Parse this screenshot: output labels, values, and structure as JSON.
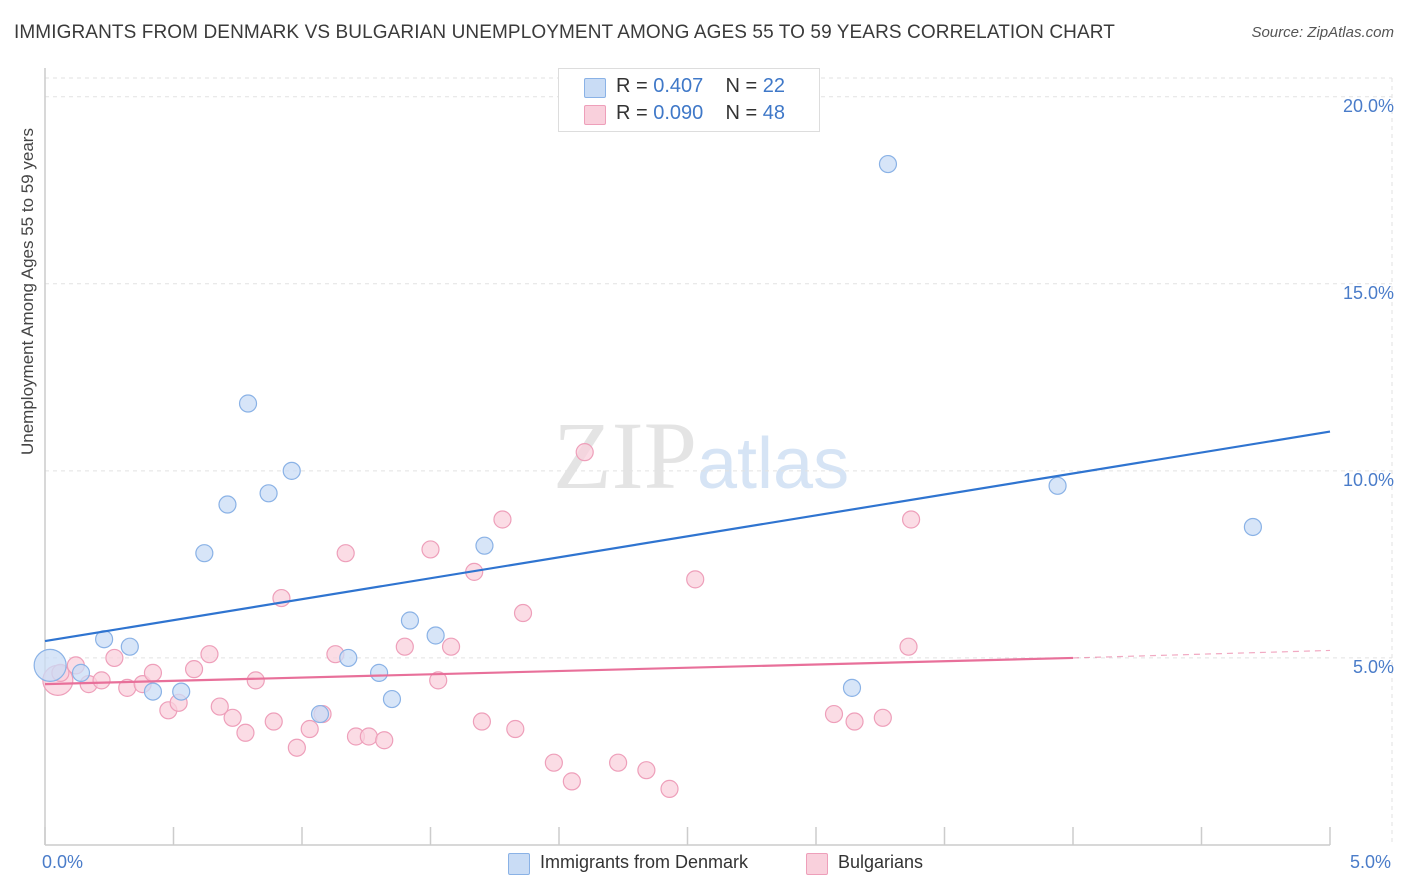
{
  "title": "IMMIGRANTS FROM DENMARK VS BULGARIAN UNEMPLOYMENT AMONG AGES 55 TO 59 YEARS CORRELATION CHART",
  "source": "Source: ZipAtlas.com",
  "watermark": {
    "zip": "ZIP",
    "atlas": "atlas"
  },
  "legend": {
    "rows": [
      {
        "r_label": "R =",
        "r_value": "0.407",
        "n_label": "N =",
        "n_value": "22",
        "color": "#aac8ef"
      },
      {
        "r_label": "R =",
        "r_value": "0.090",
        "n_label": "N =",
        "n_value": "48",
        "color": "#f6b6ca"
      }
    ]
  },
  "bottom_legend": [
    {
      "label": "Immigrants from Denmark",
      "color": "#aac8ef"
    },
    {
      "label": "Bulgarians",
      "color": "#f6b6ca"
    }
  ],
  "colors": {
    "blue_point_fill": "#c9dcf5",
    "blue_point_stroke": "#8ab2e6",
    "blue_line": "#2f74d0",
    "pink_point_fill": "#f9d0dc",
    "pink_point_stroke": "#ee9fba",
    "pink_line": "#e8709a",
    "grid": "#e2e2e2",
    "axis": "#cccccc",
    "tick_text": "#4a7cc9"
  },
  "chart_data": {
    "type": "scatter",
    "title": "IMMIGRANTS FROM DENMARK VS BULGARIAN UNEMPLOYMENT AMONG AGES 55 TO 59 YEARS CORRELATION CHART",
    "xlabel": "",
    "ylabel": "Unemployment Among Ages 55 to 59 years",
    "xlim": [
      0,
      5
    ],
    "ylim": [
      0,
      20.5
    ],
    "x_tick_labels": [
      {
        "value": 0,
        "label": "0.0%"
      },
      {
        "value": 5,
        "label": "5.0%"
      }
    ],
    "y_tick_labels": [
      {
        "value": 5,
        "label": "5.0%"
      },
      {
        "value": 10,
        "label": "10.0%"
      },
      {
        "value": 15,
        "label": "15.0%"
      },
      {
        "value": 20,
        "label": "20.0%"
      }
    ],
    "grid": true,
    "legend_position": "top-center",
    "series": [
      {
        "name": "Immigrants from Denmark",
        "points": [
          [
            0.02,
            4.8
          ],
          [
            0.14,
            4.6
          ],
          [
            0.23,
            5.5
          ],
          [
            0.33,
            5.3
          ],
          [
            0.42,
            4.1
          ],
          [
            0.53,
            4.1
          ],
          [
            0.62,
            7.8
          ],
          [
            0.71,
            9.1
          ],
          [
            0.79,
            11.8
          ],
          [
            0.87,
            9.4
          ],
          [
            0.96,
            10.0
          ],
          [
            1.07,
            3.5
          ],
          [
            1.18,
            5.0
          ],
          [
            1.3,
            4.6
          ],
          [
            1.35,
            3.9
          ],
          [
            1.42,
            6.0
          ],
          [
            1.52,
            5.6
          ],
          [
            1.71,
            8.0
          ],
          [
            3.14,
            4.2
          ],
          [
            3.28,
            18.2
          ],
          [
            3.94,
            9.6
          ],
          [
            4.7,
            8.5
          ]
        ],
        "trend": {
          "x": [
            0.0,
            5.0
          ],
          "y": [
            5.45,
            11.05
          ]
        }
      },
      {
        "name": "Bulgarians",
        "points": [
          [
            0.05,
            4.4
          ],
          [
            0.12,
            4.8
          ],
          [
            0.17,
            4.3
          ],
          [
            0.22,
            4.4
          ],
          [
            0.27,
            5.0
          ],
          [
            0.32,
            4.2
          ],
          [
            0.38,
            4.3
          ],
          [
            0.42,
            4.6
          ],
          [
            0.48,
            3.6
          ],
          [
            0.52,
            3.8
          ],
          [
            0.58,
            4.7
          ],
          [
            0.64,
            5.1
          ],
          [
            0.68,
            3.7
          ],
          [
            0.73,
            3.4
          ],
          [
            0.78,
            3.0
          ],
          [
            0.82,
            4.4
          ],
          [
            0.89,
            3.3
          ],
          [
            0.92,
            6.6
          ],
          [
            0.98,
            2.6
          ],
          [
            1.03,
            3.1
          ],
          [
            1.08,
            3.5
          ],
          [
            1.13,
            5.1
          ],
          [
            1.17,
            7.8
          ],
          [
            1.21,
            2.9
          ],
          [
            1.26,
            2.9
          ],
          [
            1.32,
            2.8
          ],
          [
            1.4,
            5.3
          ],
          [
            1.5,
            7.9
          ],
          [
            1.53,
            4.4
          ],
          [
            1.58,
            5.3
          ],
          [
            1.67,
            7.3
          ],
          [
            1.7,
            3.3
          ],
          [
            1.78,
            8.7
          ],
          [
            1.83,
            3.1
          ],
          [
            1.86,
            6.2
          ],
          [
            1.98,
            2.2
          ],
          [
            2.05,
            1.7
          ],
          [
            2.1,
            10.5
          ],
          [
            2.23,
            2.2
          ],
          [
            2.34,
            2.0
          ],
          [
            2.43,
            1.5
          ],
          [
            2.53,
            7.1
          ],
          [
            3.07,
            3.5
          ],
          [
            3.15,
            3.3
          ],
          [
            3.26,
            3.4
          ],
          [
            3.37,
            8.7
          ],
          [
            3.36,
            5.3
          ],
          [
            0.06,
            4.6
          ]
        ],
        "trend": {
          "x": [
            0.0,
            4.0
          ],
          "y": [
            4.3,
            5.0
          ]
        },
        "trend_extension": {
          "x": [
            4.0,
            5.0
          ],
          "y": [
            5.0,
            5.2
          ]
        }
      }
    ]
  }
}
